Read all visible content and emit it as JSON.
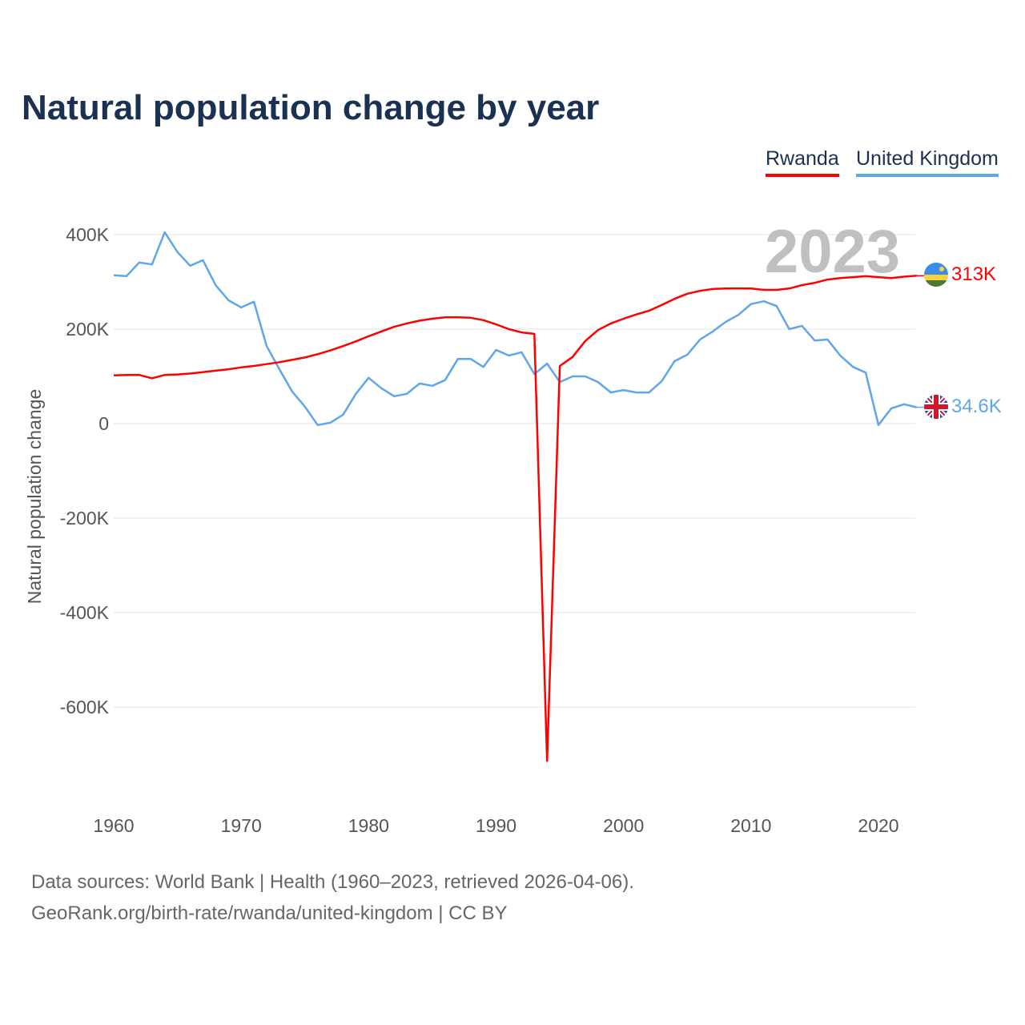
{
  "chart_data": {
    "type": "line",
    "title": "Natural population change by year",
    "ylabel": "Natural population change",
    "xlabel": "",
    "xlim": [
      1960,
      2023
    ],
    "ylim": [
      -780,
      500
    ],
    "y_ticks": [
      400,
      200,
      0,
      -200,
      -400,
      -600
    ],
    "y_tick_labels": [
      "400K",
      "200K",
      "0",
      "-200K",
      "-400K",
      "-600K"
    ],
    "x_ticks": [
      1960,
      1970,
      1980,
      1990,
      2000,
      2010,
      2020
    ],
    "x_tick_labels": [
      "1960",
      "1970",
      "1980",
      "1990",
      "2000",
      "2010",
      "2020"
    ],
    "grid": true,
    "legend_position": "top-right",
    "year_watermark": "2023",
    "units": "thousands",
    "series": [
      {
        "name": "Rwanda",
        "color": "#ff0000",
        "end_label": "313K",
        "flag": "rwanda-flag",
        "values": [
          102,
          103,
          103,
          96,
          103,
          104,
          106,
          109,
          112,
          115,
          119,
          122,
          126,
          130,
          135,
          140,
          147,
          155,
          164,
          174,
          185,
          195,
          205,
          212,
          218,
          222,
          225,
          225,
          224,
          219,
          210,
          200,
          193,
          190,
          -714,
          122,
          141,
          175,
          198,
          212,
          222,
          231,
          239,
          251,
          264,
          275,
          281,
          285,
          286,
          286,
          286,
          283,
          283,
          286,
          293,
          298,
          305,
          308,
          310,
          312,
          310,
          308,
          311,
          313
        ]
      },
      {
        "name": "United Kingdom",
        "color": "#5fa6ea",
        "end_label": "34.6K",
        "flag": "uk-flag",
        "values": [
          314,
          312,
          341,
          337,
          405,
          363,
          334,
          346,
          293,
          261,
          246,
          258,
          164,
          115,
          68,
          36,
          -3,
          2,
          19,
          63,
          97,
          75,
          58,
          63,
          85,
          80,
          92,
          137,
          137,
          120,
          156,
          144,
          151,
          105,
          127,
          88,
          100,
          100,
          88,
          66,
          71,
          66,
          66,
          90,
          132,
          146,
          178,
          195,
          215,
          230,
          253,
          259,
          249,
          200,
          207,
          176,
          178,
          144,
          120,
          108,
          -3,
          32,
          41,
          34.6
        ]
      }
    ]
  },
  "footer": {
    "line1": "Data sources: World Bank | Health (1960–2023, retrieved 2026-04-06).",
    "line2": "GeoRank.org/birth-rate/rwanda/united-kingdom | CC BY"
  }
}
